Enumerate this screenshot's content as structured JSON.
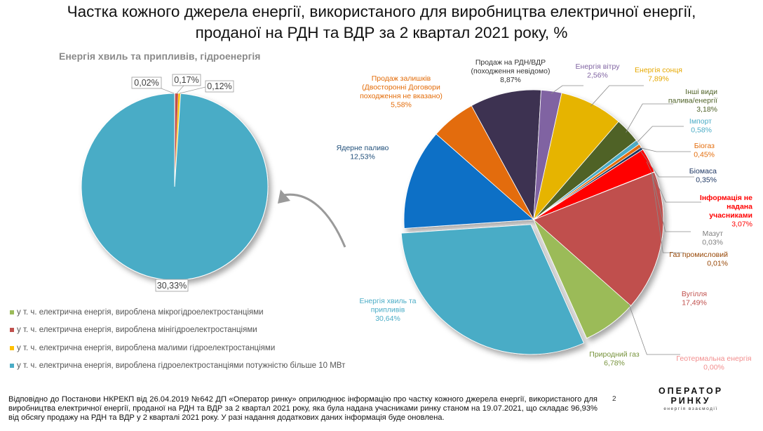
{
  "title_line1": "Частка кожного джерела енергії, використаного для виробництва електричної енергії,",
  "title_line2": "проданої на РДН та ВДР за 2 квартал 2021 року, %",
  "left_chart_title": "Енергія хвиль та припливів, гідроенергія",
  "chart_data": [
    {
      "type": "pie",
      "title": "Енергія хвиль та припливів, гідроенергія",
      "slices": [
        {
          "name": "у т. ч. електрична енергія, вироблена гідроелектростанціями потужністю більше 10 МВт",
          "value": 30.33,
          "label": "30,33%",
          "color": "#4aacc6"
        },
        {
          "name": "у т. ч. електрична енергія, вироблена мікрогідроелектростанціями",
          "value": 0.02,
          "label": "0,02%",
          "color": "#9bbb59"
        },
        {
          "name": "у т. ч. електрична енергія, вироблена мінігідроелектростанціями",
          "value": 0.17,
          "label": "0,17%",
          "color": "#c0504d"
        },
        {
          "name": "у т. ч. електрична енергія, вироблена малими гідроелектростанціями",
          "value": 0.12,
          "label": "0,12%",
          "color": "#ffc000"
        }
      ],
      "legend": [
        {
          "label": "у т. ч. електрична енергія, вироблена мікрогідроелектростанціями",
          "color": "#9bbb59"
        },
        {
          "label": "у т. ч. електрична енергія, вироблена мінігідроелектростанціями",
          "color": "#c0504d"
        },
        {
          "label": "у т. ч. електрична енергія, вироблена малими гідроелектростанціями",
          "color": "#ffc000"
        },
        {
          "label": "у т. ч. електрична енергія, вироблена гідроелектростанціями потужністю більше 10 МВт",
          "color": "#4aacc6"
        }
      ]
    },
    {
      "type": "pie",
      "title": "",
      "slices": [
        {
          "name": "Продаж на РДН/ВДР (походження невідомо)",
          "lines": [
            "Продаж на РДН/ВДР",
            "(походження невідомо)"
          ],
          "value": 8.87,
          "label": "8,87%",
          "color": "#3d3151",
          "textColor": "#333333"
        },
        {
          "name": "Енергія вітру",
          "lines": [
            "Енергія вітру"
          ],
          "value": 2.56,
          "label": "2,56%",
          "color": "#8064a2",
          "textColor": "#8064a2"
        },
        {
          "name": "Енергія сонця",
          "lines": [
            "Енергія сонця"
          ],
          "value": 7.89,
          "label": "7,89%",
          "color": "#e6b400",
          "textColor": "#e6a800"
        },
        {
          "name": "Інші види палива/енергії",
          "lines": [
            "Інші види",
            "палива/енергії"
          ],
          "value": 3.18,
          "label": "3,18%",
          "color": "#4f6228",
          "textColor": "#4f6228"
        },
        {
          "name": "Імпорт",
          "lines": [
            "Імпорт"
          ],
          "value": 0.58,
          "label": "0,58%",
          "color": "#4bacc6",
          "textColor": "#4bacc6"
        },
        {
          "name": "Біогаз",
          "lines": [
            "Біогаз"
          ],
          "value": 0.45,
          "label": "0,45%",
          "color": "#e46c0a",
          "textColor": "#e46c0a"
        },
        {
          "name": "Біомаса",
          "lines": [
            "Біомаса"
          ],
          "value": 0.35,
          "label": "0,35%",
          "color": "#1f3864",
          "textColor": "#1f3864"
        },
        {
          "name": "Інформація не надана учасниками",
          "lines": [
            "Інформація не",
            "надана",
            "учасниками"
          ],
          "value": 3.07,
          "label": "3,07%",
          "color": "#ff0000",
          "textColor": "#ff0000"
        },
        {
          "name": "Мазут",
          "lines": [
            "Мазут"
          ],
          "value": 0.03,
          "label": "0,03%",
          "color": "#948a54",
          "textColor": "#7f7f7f"
        },
        {
          "name": "Газ промисловий",
          "lines": [
            "Газ промисловий"
          ],
          "value": 0.01,
          "label": "0,01%",
          "color": "#974706",
          "textColor": "#974706"
        },
        {
          "name": "Вугілля",
          "lines": [
            "Вугілля"
          ],
          "value": 17.49,
          "label": "17,49%",
          "color": "#c0504d",
          "textColor": "#c0504d"
        },
        {
          "name": "Геотермальна енергія",
          "lines": [
            "Геотермальна енергія"
          ],
          "value": 0.0,
          "label": "0,00%",
          "color": "#f28e8e",
          "textColor": "#f28e8e"
        },
        {
          "name": "Природний газ",
          "lines": [
            "Природний газ"
          ],
          "value": 6.78,
          "label": "6,78%",
          "color": "#9bbb59",
          "textColor": "#77933c"
        },
        {
          "name": "Енергія хвиль та припливів",
          "lines": [
            "Енергія хвиль та",
            "припливів"
          ],
          "value": 30.64,
          "label": "30,64%",
          "color": "#4aacc6",
          "textColor": "#4aacc6"
        },
        {
          "name": "Ядерне паливо",
          "lines": [
            "Ядерне паливо"
          ],
          "value": 12.53,
          "label": "12,53%",
          "color": "#0f6fc6",
          "textColor": "#1f4e79"
        },
        {
          "name": "Продаж залишків (Двосторонні Договори походження не вказано)",
          "lines": [
            "Продаж залишків",
            "(Двосторонні Договори",
            "походження не вказано)"
          ],
          "value": 5.58,
          "label": "5,58%",
          "color": "#e36c09",
          "textColor": "#e36c09"
        }
      ]
    }
  ],
  "footnote": "Відповідно до Постанови НКРЕКП від 26.04.2019 №642 ДП «Оператор ринку» оприлюднює інформацію про частку кожного джерела енергії, використаного для виробництва електричної енергії, проданої на РДН та ВДР за 2 квартал  2021 року, яка була надана учасниками ринку станом на 19.07.2021, що складає 96,93% від обсягу продажу на РДН та ВДР у 2 кварталі 2021 року.  У разі надання додаткових даних інформація буде оновлена.",
  "page_number": "2",
  "brand": {
    "name": "ОПЕРАТОР РИНКУ",
    "tagline": "енергія взаємодії"
  }
}
